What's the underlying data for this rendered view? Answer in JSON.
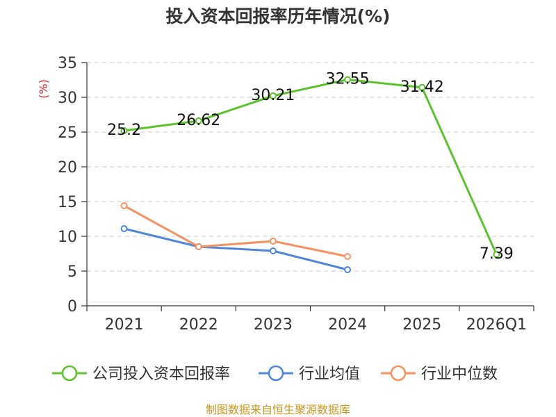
{
  "chart_data": {
    "type": "line",
    "title": "投入资本回报率历年情况(%)",
    "ylabel": "(%)",
    "xlabel": "",
    "categories": [
      "2021",
      "2022",
      "2023",
      "2024",
      "2025",
      "2026Q1"
    ],
    "ylim": [
      0,
      35
    ],
    "yticks": [
      0,
      5,
      10,
      15,
      20,
      25,
      30,
      35
    ],
    "grid": true,
    "legend_position": "bottom",
    "series": [
      {
        "name": "公司投入资本回报率",
        "color": "#5cc22b",
        "values": [
          25.2,
          26.62,
          30.21,
          32.55,
          31.42,
          7.39
        ],
        "labels": [
          "25.2",
          "26.62",
          "30.21",
          "32.55",
          "31.42",
          "7.39"
        ]
      },
      {
        "name": "行业均值",
        "color": "#4f86d9",
        "values": [
          11.1,
          8.5,
          7.9,
          5.2,
          null,
          null
        ]
      },
      {
        "name": "行业中位数",
        "color": "#f59161",
        "values": [
          14.4,
          8.5,
          9.3,
          7.1,
          null,
          null
        ]
      }
    ]
  },
  "source": "制图数据来自恒生聚源数据库"
}
